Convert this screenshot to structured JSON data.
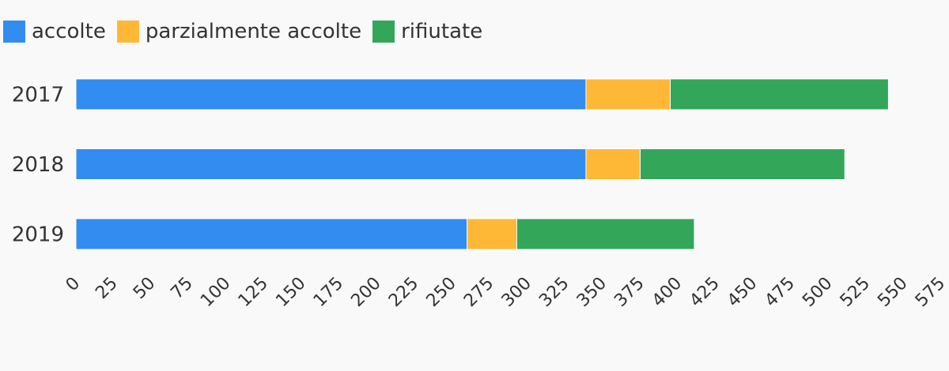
{
  "chart_data": {
    "type": "bar",
    "orientation": "horizontal",
    "stacked": true,
    "categories": [
      "2017",
      "2018",
      "2019"
    ],
    "series": [
      {
        "name": "accolte",
        "color": "#338cf0",
        "values": [
          339,
          339,
          260
        ]
      },
      {
        "name": "parzialmente accolte",
        "color": "#ffb836",
        "values": [
          56,
          36,
          33
        ]
      },
      {
        "name": "rifiutate",
        "color": "#33a65a",
        "values": [
          145,
          136,
          118
        ]
      }
    ],
    "xlim": [
      0,
      575
    ],
    "xticks": [
      "0",
      "25",
      "50",
      "75",
      "100",
      "125",
      "150",
      "175",
      "200",
      "225",
      "250",
      "275",
      "300",
      "325",
      "350",
      "375",
      "400",
      "425",
      "450",
      "475",
      "500",
      "525",
      "550",
      "575"
    ],
    "grid": false,
    "legend_position": "top-left"
  }
}
